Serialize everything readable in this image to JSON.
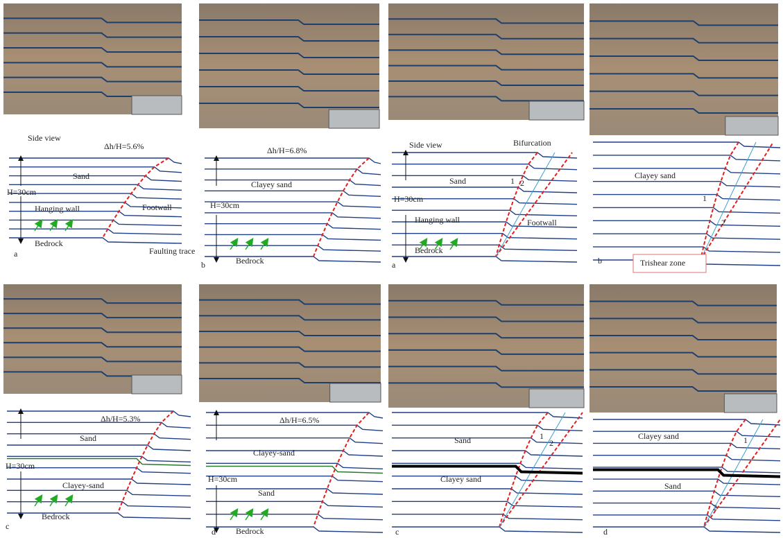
{
  "panels": [
    {
      "labels": [
        "Side view",
        "Δh/H=5.6%",
        "Sand",
        "H=30cm",
        "Hanging wall",
        "Footwall",
        "Bedrock",
        "Faulting trace",
        "a"
      ]
    },
    {
      "labels": [
        "Δh/H=6.8%",
        "Clayey sand",
        "H=30cm",
        "Bedrock",
        "b"
      ]
    },
    {
      "labels": [
        "Side view",
        "Bifurcation",
        "Sand",
        "H=30cm",
        "Hanging wall",
        "Footwall",
        "Bedrock",
        "1",
        "2",
        "a"
      ]
    },
    {
      "labels": [
        "Clayey sand",
        "1",
        "2",
        "Trishear zone",
        "b"
      ]
    },
    {
      "labels": [
        "Δh/H=5.3%",
        "Sand",
        "H=30cm",
        "Clayey-sand",
        "Bedrock",
        "c"
      ]
    },
    {
      "labels": [
        "Δh/H=6.5%",
        "Clayey-sand",
        "H=30cm",
        "Sand",
        "Bedrock",
        "d"
      ]
    },
    {
      "labels": [
        "Sand",
        "Clayey sand",
        "1",
        "2",
        "c"
      ]
    },
    {
      "labels": [
        "Clayey sand",
        "Sand",
        "1",
        "2",
        "d"
      ]
    }
  ]
}
